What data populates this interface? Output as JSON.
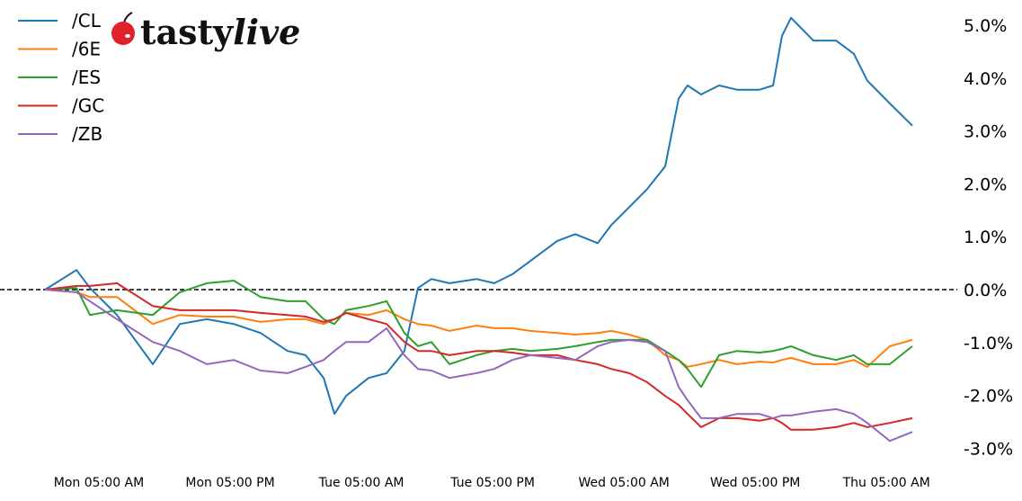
{
  "logo_text": "tastylive",
  "chart_data": {
    "type": "line",
    "title": "",
    "xlabel": "",
    "ylabel": "",
    "ylim": [
      -3.3,
      5.2
    ],
    "y_ticks": [
      "5.0%",
      "4.0%",
      "3.0%",
      "2.0%",
      "1.0%",
      "0.0%",
      "-1.0%",
      "-2.0%",
      "-3.0%"
    ],
    "y_tick_values": [
      5,
      4,
      3,
      2,
      1,
      0,
      -1,
      -2,
      -3
    ],
    "y_axis_side": "right",
    "x_ticks": [
      "Mon 05:00 AM",
      "Mon 05:00 PM",
      "Tue 05:00 AM",
      "Tue 05:00 PM",
      "Wed 05:00 AM",
      "Wed 05:00 PM",
      "Thu 05:00 AM"
    ],
    "x_tick_values": [
      "Mon 05:00",
      "Mon 17:00",
      "Tue 05:00",
      "Tue 17:00",
      "Wed 05:00",
      "Wed 17:00",
      "Thu 05:00"
    ],
    "reference_line": {
      "value": 0,
      "style": "dashed",
      "color": "#000000"
    },
    "grid": false,
    "legend_position": "top-left",
    "x": [
      "Mon 00:05",
      "Mon 02:57",
      "Mon 04:11",
      "Mon 06:39",
      "Mon 09:56",
      "Mon 12:24",
      "Mon 14:52",
      "Mon 17:20",
      "Mon 19:47",
      "Mon 22:15",
      "Mon 23:54",
      "Tue 01:33",
      "Tue 02:32",
      "Tue 03:36",
      "Tue 05:39",
      "Tue 07:18",
      "Tue 08:56",
      "Tue 10:10",
      "Tue 11:24",
      "Tue 13:03",
      "Tue 15:31",
      "Tue 17:09",
      "Tue 18:48",
      "Tue 20:26",
      "Tue 22:54",
      "Wed 00:33",
      "Wed 02:36",
      "Wed 03:50",
      "Wed 05:29",
      "Wed 07:07",
      "Wed 08:46",
      "Wed 10:00",
      "Wed 10:49",
      "Wed 12:03",
      "Wed 13:42",
      "Wed 15:20",
      "Wed 17:24",
      "Wed 18:38",
      "Wed 19:27",
      "Wed 20:16",
      "Wed 22:19",
      "Thu 00:23",
      "Thu 02:01",
      "Thu 03:15",
      "Thu 05:18",
      "Thu 07:22"
    ],
    "series": [
      {
        "name": "/CL",
        "color": "#1f77b4",
        "values": [
          0.0,
          0.37,
          0.03,
          -0.48,
          -1.41,
          -0.65,
          -0.56,
          -0.65,
          -0.82,
          -1.16,
          -1.24,
          -1.67,
          -2.35,
          -2.01,
          -1.67,
          -1.58,
          -1.16,
          0.03,
          0.2,
          0.12,
          0.2,
          0.12,
          0.29,
          0.54,
          0.92,
          1.05,
          0.88,
          1.22,
          1.56,
          1.9,
          2.33,
          3.61,
          3.86,
          3.69,
          3.86,
          3.78,
          3.78,
          3.86,
          4.8,
          5.14,
          4.71,
          4.71,
          4.46,
          3.95,
          3.52,
          3.1
        ]
      },
      {
        "name": "/6E",
        "color": "#ff7f0e",
        "values": [
          0.0,
          -0.05,
          -0.14,
          -0.14,
          -0.65,
          -0.48,
          -0.51,
          -0.51,
          -0.61,
          -0.56,
          -0.56,
          -0.65,
          -0.56,
          -0.44,
          -0.48,
          -0.39,
          -0.56,
          -0.65,
          -0.68,
          -0.78,
          -0.68,
          -0.73,
          -0.73,
          -0.78,
          -0.82,
          -0.85,
          -0.82,
          -0.78,
          -0.85,
          -0.95,
          -1.24,
          -1.33,
          -1.46,
          -1.41,
          -1.33,
          -1.41,
          -1.36,
          -1.38,
          -1.33,
          -1.29,
          -1.41,
          -1.41,
          -1.33,
          -1.46,
          -1.07,
          -0.95
        ]
      },
      {
        "name": "/ES",
        "color": "#2ca02c",
        "values": [
          0.0,
          0.03,
          -0.48,
          -0.39,
          -0.48,
          -0.05,
          0.12,
          0.17,
          -0.14,
          -0.22,
          -0.22,
          -0.56,
          -0.65,
          -0.39,
          -0.31,
          -0.22,
          -0.82,
          -1.07,
          -0.99,
          -1.41,
          -1.24,
          -1.16,
          -1.12,
          -1.16,
          -1.12,
          -1.07,
          -0.99,
          -0.95,
          -0.95,
          -0.95,
          -1.16,
          -1.33,
          -1.5,
          -1.84,
          -1.24,
          -1.16,
          -1.19,
          -1.16,
          -1.12,
          -1.07,
          -1.24,
          -1.33,
          -1.24,
          -1.41,
          -1.41,
          -1.07
        ]
      },
      {
        "name": "/GC",
        "color": "#d62728",
        "values": [
          0.0,
          0.07,
          0.07,
          0.12,
          -0.31,
          -0.39,
          -0.39,
          -0.39,
          -0.44,
          -0.48,
          -0.51,
          -0.61,
          -0.56,
          -0.44,
          -0.56,
          -0.65,
          -0.99,
          -1.16,
          -1.16,
          -1.24,
          -1.16,
          -1.16,
          -1.19,
          -1.24,
          -1.24,
          -1.33,
          -1.41,
          -1.5,
          -1.58,
          -1.75,
          -2.01,
          -2.18,
          -2.35,
          -2.6,
          -2.43,
          -2.43,
          -2.48,
          -2.43,
          -2.52,
          -2.65,
          -2.65,
          -2.6,
          -2.52,
          -2.6,
          -2.52,
          -2.43
        ]
      },
      {
        "name": "/ZB",
        "color": "#9467bd",
        "values": [
          0.0,
          -0.05,
          -0.22,
          -0.56,
          -0.99,
          -1.16,
          -1.41,
          -1.33,
          -1.53,
          -1.58,
          -1.46,
          -1.33,
          -1.16,
          -0.99,
          -0.99,
          -0.73,
          -1.24,
          -1.5,
          -1.53,
          -1.67,
          -1.58,
          -1.5,
          -1.33,
          -1.24,
          -1.29,
          -1.33,
          -1.07,
          -0.99,
          -0.95,
          -0.99,
          -1.16,
          -1.84,
          -2.09,
          -2.43,
          -2.43,
          -2.35,
          -2.35,
          -2.43,
          -2.38,
          -2.38,
          -2.31,
          -2.26,
          -2.35,
          -2.52,
          -2.86,
          -2.69
        ]
      }
    ]
  }
}
